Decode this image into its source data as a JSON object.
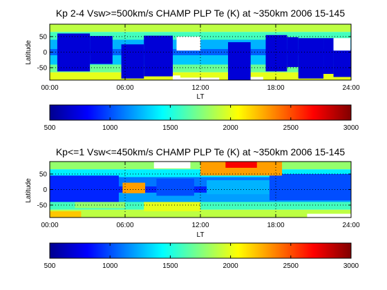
{
  "colormap": [
    "#00008f",
    "#0000ff",
    "#0080ff",
    "#00ffff",
    "#80ff80",
    "#ffff00",
    "#ff8000",
    "#ff0000",
    "#800000"
  ],
  "chart_data": [
    {
      "type": "heatmap",
      "title": "Kp 2-4 Vsw>=500km/s CHAMP PLP Te (K) at ~350km 2006 15-145",
      "xlabel": "LT",
      "ylabel": "Latitude",
      "xlim": [
        0,
        24
      ],
      "ylim": [
        -90,
        90
      ],
      "xticks": [
        0,
        6,
        12,
        18,
        24
      ],
      "xtick_labels": [
        "00:00",
        "06:00",
        "12:00",
        "18:00",
        "24:00"
      ],
      "yticks": [
        50,
        0,
        -50
      ],
      "ytick_labels": [
        "50",
        "0",
        "-50"
      ],
      "grid": true,
      "colorbar": {
        "min": 500,
        "max": 3000,
        "ticks": [
          500,
          1000,
          1500,
          2000,
          2500,
          3000
        ],
        "tick_labels": [
          "500",
          "1000",
          "1500",
          "2000",
          "2500",
          "3000"
        ]
      },
      "colorbar_label": "",
      "bands": [
        {
          "lat": [
            65,
            90
          ],
          "value": 1900
        },
        {
          "lat": [
            40,
            65
          ],
          "value": 1600
        },
        {
          "lat": [
            10,
            40
          ],
          "value": 1250
        },
        {
          "lat": [
            -10,
            10
          ],
          "value": 1050
        },
        {
          "lat": [
            -40,
            -10
          ],
          "value": 1300
        },
        {
          "lat": [
            -65,
            -40
          ],
          "value": 1700
        },
        {
          "lat": [
            -90,
            -65
          ],
          "value": 2000
        }
      ],
      "rects": [
        {
          "lt": [
            0.6,
            3.2
          ],
          "lat": [
            -62,
            60
          ],
          "value": 700
        },
        {
          "lt": [
            3.2,
            5.0
          ],
          "lat": [
            -38,
            52
          ],
          "value": 700
        },
        {
          "lt": [
            5.7,
            7.5
          ],
          "lat": [
            -85,
            25
          ],
          "value": 700
        },
        {
          "lt": [
            7.5,
            9.8
          ],
          "lat": [
            -78,
            53
          ],
          "value": 700
        },
        {
          "lt": [
            14.2,
            16.0
          ],
          "lat": [
            -90,
            32
          ],
          "value": 700
        },
        {
          "lt": [
            17.2,
            18.9
          ],
          "lat": [
            -62,
            55
          ],
          "value": 700
        },
        {
          "lt": [
            18.9,
            19.8
          ],
          "lat": [
            -48,
            48
          ],
          "value": 700
        },
        {
          "lt": [
            19.8,
            21.8
          ],
          "lat": [
            -85,
            45
          ],
          "value": 700
        },
        {
          "lt": [
            21.8,
            22.6
          ],
          "lat": [
            -70,
            45
          ],
          "value": 700
        },
        {
          "lt": [
            22.6,
            24.0
          ],
          "lat": [
            -80,
            5
          ],
          "value": 700
        }
      ],
      "blanks": [
        {
          "lt": [
            10.1,
            12.0
          ],
          "lat": [
            5,
            50
          ]
        },
        {
          "lt": [
            9.8,
            10.4
          ],
          "lat": [
            -90,
            -75
          ]
        },
        {
          "lt": [
            16.0,
            17.0
          ],
          "lat": [
            -90,
            -80
          ]
        },
        {
          "lt": [
            22.6,
            23.95
          ],
          "lat": [
            5,
            45
          ]
        },
        {
          "lt": [
            9.8,
            13.5
          ],
          "lat": [
            -90,
            -82
          ]
        }
      ]
    },
    {
      "type": "heatmap",
      "title": "Kp<=1 Vsw<=450km/s CHAMP PLP Te (K) at ~350km 2006 15-145",
      "xlabel": "LT",
      "ylabel": "Latitude",
      "xlim": [
        0,
        24
      ],
      "ylim": [
        -90,
        90
      ],
      "xticks": [
        0,
        6,
        12,
        18,
        24
      ],
      "xtick_labels": [
        "00:00",
        "06:00",
        "12:00",
        "18:00",
        "24:00"
      ],
      "yticks": [
        50,
        0,
        -50
      ],
      "ytick_labels": [
        "50",
        "0",
        "-50"
      ],
      "grid": true,
      "colorbar": {
        "min": 500,
        "max": 3000,
        "ticks": [
          500,
          1000,
          1500,
          2000,
          2500,
          3000
        ],
        "tick_labels": [
          "500",
          "1000",
          "1500",
          "2000",
          "2500",
          "3000"
        ]
      },
      "colorbar_label": "",
      "bands": [
        {
          "lat": [
            65,
            90
          ],
          "value": 1800
        },
        {
          "lat": [
            40,
            65
          ],
          "value": 1400
        },
        {
          "lat": [
            10,
            40
          ],
          "value": 1100
        },
        {
          "lat": [
            -10,
            10
          ],
          "value": 900
        },
        {
          "lat": [
            -40,
            -10
          ],
          "value": 1200
        },
        {
          "lat": [
            -65,
            -40
          ],
          "value": 1600
        },
        {
          "lat": [
            -90,
            -65
          ],
          "value": 1900
        }
      ],
      "rects": [
        {
          "lt": [
            0,
            5.5
          ],
          "lat": [
            -40,
            45
          ],
          "value": 900
        },
        {
          "lt": [
            8.5,
            11.5
          ],
          "lat": [
            -20,
            35
          ],
          "value": 1000
        },
        {
          "lt": [
            12.5,
            17.5
          ],
          "lat": [
            -15,
            30
          ],
          "value": 1250
        },
        {
          "lt": [
            17.5,
            24.0
          ],
          "lat": [
            -35,
            50
          ],
          "value": 1000
        },
        {
          "lt": [
            12.0,
            18.5
          ],
          "lat": [
            45,
            90
          ],
          "value": 2300
        },
        {
          "lt": [
            14.0,
            16.5
          ],
          "lat": [
            70,
            90
          ],
          "value": 2700
        },
        {
          "lt": [
            7.5,
            12.0
          ],
          "lat": [
            -70,
            -40
          ],
          "value": 2000
        },
        {
          "lt": [
            2.0,
            6.0
          ],
          "lat": [
            -60,
            -40
          ],
          "value": 1800
        },
        {
          "lt": [
            6.1,
            7.2
          ],
          "lat": [
            -5,
            15
          ],
          "value": 2800
        },
        {
          "lt": [
            5.8,
            7.6
          ],
          "lat": [
            -12,
            22
          ],
          "value": 2300
        },
        {
          "lt": [
            0,
            2.5
          ],
          "lat": [
            -90,
            -70
          ],
          "value": 2200
        }
      ],
      "blanks": [
        {
          "lt": [
            8.3,
            11.2
          ],
          "lat": [
            68,
            90
          ]
        },
        {
          "lt": [
            20.5,
            24.0
          ],
          "lat": [
            -90,
            -78
          ]
        }
      ]
    }
  ]
}
